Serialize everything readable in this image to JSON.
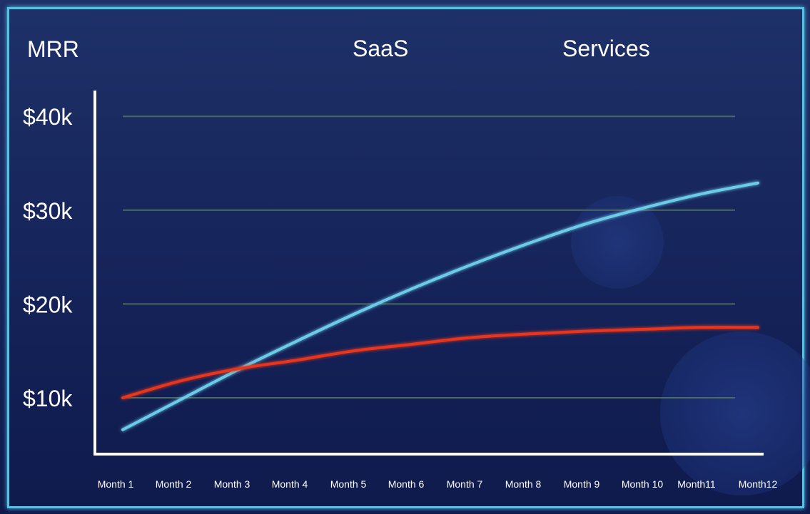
{
  "chart_data": {
    "type": "line",
    "title": "MRR",
    "xlabel": "",
    "ylabel": "MRR",
    "categories": [
      "Month 1",
      "Month 2",
      "Month 3",
      "Month 4",
      "Month 5",
      "Month 6",
      "Month 7",
      "Month 8",
      "Month 9",
      "Month 10",
      "Month11",
      "Month12"
    ],
    "yticks": [
      10,
      20,
      30,
      40
    ],
    "ytick_labels": [
      "$10k",
      "$20k",
      "$30k",
      "$40k"
    ],
    "ylim": [
      4,
      42
    ],
    "grid": true,
    "legend_position": "top",
    "series": [
      {
        "name": "SaaS",
        "color": "#6ccbe8",
        "values": [
          6.6,
          9.8,
          13.0,
          16.0,
          18.9,
          21.6,
          24.1,
          26.4,
          28.5,
          30.2,
          31.7,
          32.9
        ]
      },
      {
        "name": "Services",
        "color": "#e8341f",
        "values": [
          10.0,
          11.8,
          13.1,
          14.0,
          15.0,
          15.7,
          16.4,
          16.8,
          17.1,
          17.3,
          17.5,
          17.5
        ]
      }
    ]
  }
}
